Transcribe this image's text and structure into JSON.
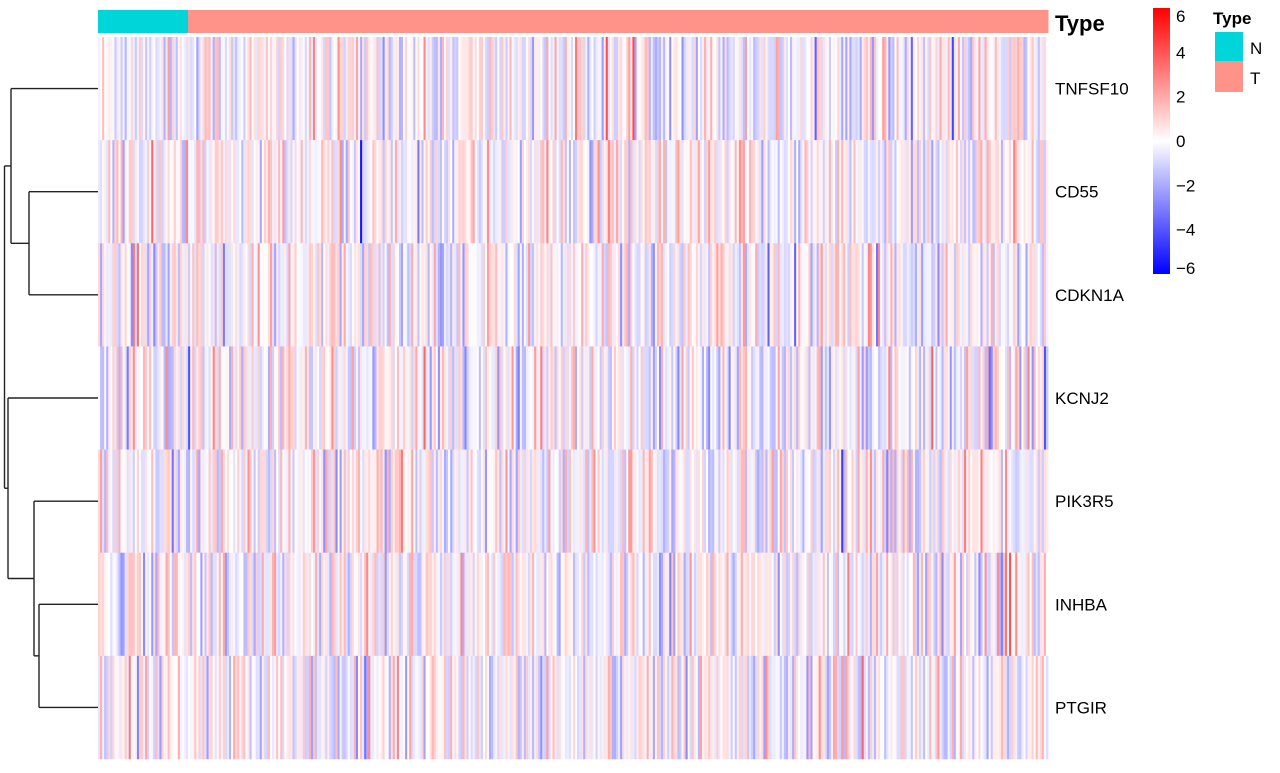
{
  "chart_data": {
    "type": "heatmap",
    "rows": [
      "TNFSF10",
      "CD55",
      "CDKN1A",
      "KCNJ2",
      "PIK3R5",
      "INHBA",
      "PTGIR"
    ],
    "column_annotation": {
      "title": "Type",
      "groups": [
        {
          "label": "N",
          "count": 44,
          "color": "#00D5D9"
        },
        {
          "label": "T",
          "count": 420,
          "color": "#FF938A"
        }
      ]
    },
    "color_scale": {
      "min": -6,
      "max": 6,
      "colors": [
        "#0000FF",
        "#FFFFFF",
        "#FF0000"
      ],
      "ticks": [
        "6",
        "4",
        "2",
        "0",
        "−2",
        "−4",
        "−6"
      ],
      "tick_values": [
        6,
        4,
        2,
        0,
        -2,
        -4,
        -6
      ]
    },
    "legend": {
      "title": "Type",
      "placement": "top-right",
      "items": [
        "N",
        "T"
      ]
    },
    "row_dendrogram": true,
    "grid": false
  }
}
